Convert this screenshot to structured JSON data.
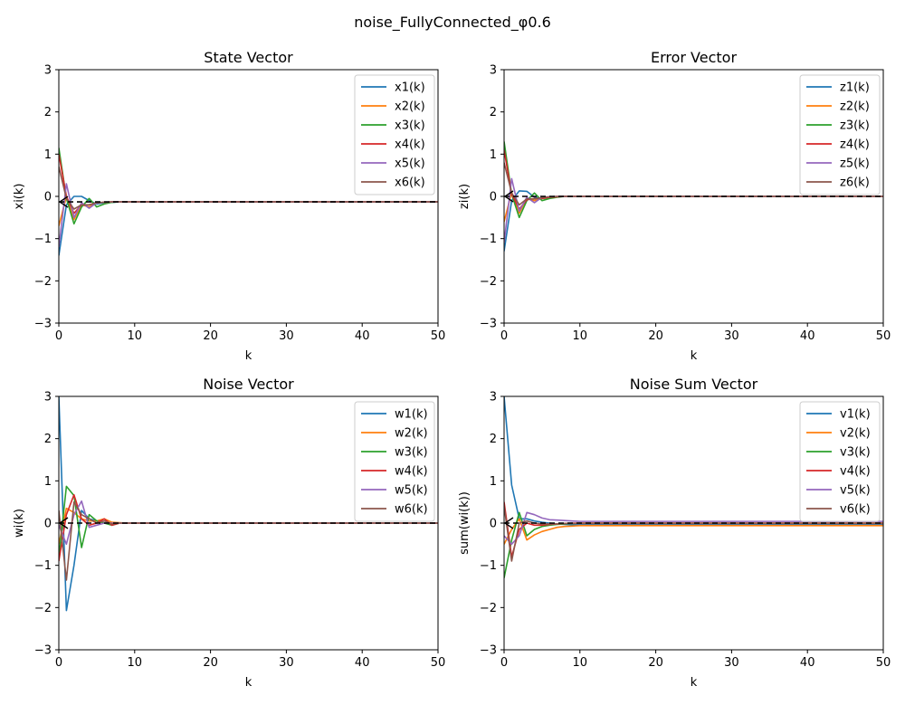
{
  "figure": {
    "suptitle": "noise_FullyConnected_φ0.6"
  },
  "colors": [
    "#1f77b4",
    "#ff7f0e",
    "#2ca02c",
    "#d62728",
    "#9467bd",
    "#8c564b"
  ],
  "chart_data": [
    {
      "type": "line",
      "title": "State Vector",
      "xlabel": "k",
      "ylabel": "xi(k)",
      "xlim": [
        0,
        50
      ],
      "ylim": [
        -3,
        3
      ],
      "xticks": [
        "0",
        "10",
        "20",
        "30",
        "40",
        "50"
      ],
      "yticks": [
        "−3",
        "−2",
        "−1",
        "0",
        "1",
        "2",
        "3"
      ],
      "legend": "top-right",
      "grid": false,
      "reference_value": -0.13,
      "x": [
        0,
        1,
        2,
        3,
        4,
        5,
        6,
        7,
        8,
        9,
        10,
        11,
        12,
        13,
        14,
        15,
        16,
        17,
        18,
        19,
        20,
        21,
        22,
        23,
        24,
        25,
        26,
        27,
        28,
        29,
        30,
        31,
        32,
        33,
        34,
        35,
        36,
        37,
        38,
        39,
        40,
        41,
        42,
        43,
        44,
        45,
        46,
        47,
        48,
        49,
        50
      ],
      "series": [
        {
          "name": "x1(k)",
          "head": [
            -1.4,
            -0.2,
            0.0,
            0.0,
            -0.1,
            -0.18,
            -0.15,
            -0.14,
            -0.13,
            -0.13
          ],
          "tail": -0.13
        },
        {
          "name": "x2(k)",
          "head": [
            -0.7,
            0.0,
            -0.55,
            -0.2,
            -0.25,
            -0.15,
            -0.14,
            -0.13,
            -0.13,
            -0.13
          ],
          "tail": -0.13
        },
        {
          "name": "x3(k)",
          "head": [
            1.15,
            -0.05,
            -0.65,
            -0.25,
            -0.05,
            -0.25,
            -0.18,
            -0.14,
            -0.13,
            -0.13
          ],
          "tail": -0.13
        },
        {
          "name": "x4(k)",
          "head": [
            1.0,
            0.0,
            -0.4,
            -0.2,
            -0.2,
            -0.15,
            -0.14,
            -0.13,
            -0.13,
            -0.13
          ],
          "tail": -0.13
        },
        {
          "name": "x5(k)",
          "head": [
            -1.2,
            0.3,
            -0.5,
            -0.15,
            -0.28,
            -0.15,
            -0.14,
            -0.13,
            -0.13,
            -0.13
          ],
          "tail": -0.13
        },
        {
          "name": "x6(k)",
          "head": [
            0.7,
            -0.05,
            -0.3,
            -0.2,
            -0.2,
            -0.15,
            -0.14,
            -0.13,
            -0.13,
            -0.13
          ],
          "tail": -0.13
        }
      ]
    },
    {
      "type": "line",
      "title": "Error Vector",
      "xlabel": "k",
      "ylabel": "zi(k)",
      "xlim": [
        0,
        50
      ],
      "ylim": [
        -3,
        3
      ],
      "xticks": [
        "0",
        "10",
        "20",
        "30",
        "40",
        "50"
      ],
      "yticks": [
        "−3",
        "−2",
        "−1",
        "0",
        "1",
        "2",
        "3"
      ],
      "legend": "top-right",
      "grid": false,
      "reference_value": 0.0,
      "x": [
        0,
        1,
        2,
        3,
        4,
        5,
        6,
        7,
        8,
        9,
        10,
        11,
        12,
        13,
        14,
        15,
        16,
        17,
        18,
        19,
        20,
        21,
        22,
        23,
        24,
        25,
        26,
        27,
        28,
        29,
        30,
        31,
        32,
        33,
        34,
        35,
        36,
        37,
        38,
        39,
        40,
        41,
        42,
        43,
        44,
        45,
        46,
        47,
        48,
        49,
        50
      ],
      "series": [
        {
          "name": "z1(k)",
          "head": [
            -1.3,
            -0.1,
            0.13,
            0.12,
            -0.02,
            -0.05,
            -0.03,
            -0.01,
            0.0,
            0.0
          ],
          "tail": 0.0
        },
        {
          "name": "z2(k)",
          "head": [
            -0.6,
            0.1,
            -0.4,
            -0.05,
            -0.1,
            -0.05,
            -0.02,
            -0.01,
            0.0,
            0.0
          ],
          "tail": 0.0
        },
        {
          "name": "z3(k)",
          "head": [
            1.3,
            0.05,
            -0.5,
            -0.1,
            0.08,
            -0.1,
            -0.05,
            -0.02,
            0.0,
            0.0
          ],
          "tail": 0.0
        },
        {
          "name": "z4(k)",
          "head": [
            1.1,
            0.05,
            -0.3,
            -0.08,
            -0.05,
            -0.05,
            -0.02,
            -0.01,
            0.0,
            0.0
          ],
          "tail": 0.0
        },
        {
          "name": "z5(k)",
          "head": [
            -1.1,
            0.42,
            -0.35,
            -0.02,
            -0.15,
            -0.02,
            -0.01,
            0.0,
            0.0,
            0.0
          ],
          "tail": 0.0
        },
        {
          "name": "z6(k)",
          "head": [
            0.8,
            0.08,
            -0.2,
            -0.06,
            -0.06,
            -0.03,
            -0.01,
            0.0,
            0.0,
            0.0
          ],
          "tail": 0.0
        }
      ]
    },
    {
      "type": "line",
      "title": "Noise Vector",
      "xlabel": "k",
      "ylabel": "wi(k)",
      "xlim": [
        0,
        50
      ],
      "ylim": [
        -3,
        3
      ],
      "xticks": [
        "0",
        "10",
        "20",
        "30",
        "40",
        "50"
      ],
      "yticks": [
        "−3",
        "−2",
        "−1",
        "0",
        "1",
        "2",
        "3"
      ],
      "legend": "top-right",
      "grid": false,
      "reference_value": 0.0,
      "x": [
        0,
        1,
        2,
        3,
        4,
        5,
        6,
        7,
        8,
        9,
        10,
        11,
        12,
        13,
        14,
        15,
        16,
        17,
        18,
        19,
        20,
        21,
        22,
        23,
        24,
        25,
        26,
        27,
        28,
        29,
        30,
        31,
        32,
        33,
        34,
        35,
        36,
        37,
        38,
        39,
        40,
        41,
        42,
        43,
        44,
        45,
        46,
        47,
        48,
        49,
        50
      ],
      "series": [
        {
          "name": "w1(k)",
          "head": [
            3.0,
            -2.07,
            -1.0,
            0.3,
            0.1,
            0.05,
            0.0,
            0.0,
            0.0,
            0.0
          ],
          "tail": 0.0
        },
        {
          "name": "w2(k)",
          "head": [
            -0.5,
            0.35,
            0.25,
            0.1,
            0.05,
            0.05,
            0.1,
            0.02,
            0.01,
            0.0
          ],
          "tail": 0.0
        },
        {
          "name": "w3(k)",
          "head": [
            -0.8,
            0.87,
            0.65,
            -0.58,
            0.2,
            0.05,
            0.0,
            -0.05,
            0.0,
            0.0
          ],
          "tail": 0.0
        },
        {
          "name": "w4(k)",
          "head": [
            -0.9,
            0.2,
            0.67,
            0.1,
            -0.05,
            0.0,
            0.1,
            -0.05,
            0.0,
            0.0
          ],
          "tail": 0.0
        },
        {
          "name": "w5(k)",
          "head": [
            -0.05,
            -0.5,
            0.2,
            0.52,
            -0.1,
            -0.05,
            0.0,
            0.0,
            0.0,
            0.0
          ],
          "tail": 0.0
        },
        {
          "name": "w6(k)",
          "head": [
            0.3,
            -1.35,
            0.5,
            0.2,
            0.1,
            0.0,
            0.05,
            -0.02,
            0.0,
            0.0
          ],
          "tail": 0.0
        }
      ]
    },
    {
      "type": "line",
      "title": "Noise Sum Vector",
      "xlabel": "k",
      "ylabel": "sum(wi(k))",
      "xlim": [
        0,
        50
      ],
      "ylim": [
        -3,
        3
      ],
      "xticks": [
        "0",
        "10",
        "20",
        "30",
        "40",
        "50"
      ],
      "yticks": [
        "−3",
        "−2",
        "−1",
        "0",
        "1",
        "2",
        "3"
      ],
      "legend": "top-right",
      "grid": false,
      "reference_value": 0.0,
      "x": [
        0,
        1,
        2,
        3,
        4,
        5,
        6,
        7,
        8,
        9,
        10,
        11,
        12,
        13,
        14,
        15,
        16,
        17,
        18,
        19,
        20,
        21,
        22,
        23,
        24,
        25,
        26,
        27,
        28,
        29,
        30,
        31,
        32,
        33,
        34,
        35,
        36,
        37,
        38,
        39,
        40,
        41,
        42,
        43,
        44,
        45,
        46,
        47,
        48,
        49,
        50
      ],
      "series": [
        {
          "name": "v1(k)",
          "head": [
            3.0,
            0.9,
            0.1,
            0.1,
            0.05,
            0.02,
            0.0,
            -0.02,
            -0.03,
            -0.04
          ],
          "tail": -0.04
        },
        {
          "name": "v2(k)",
          "head": [
            -0.5,
            -0.15,
            0.1,
            -0.4,
            -0.28,
            -0.2,
            -0.15,
            -0.1,
            -0.08,
            -0.07
          ],
          "tail": -0.06
        },
        {
          "name": "v3(k)",
          "head": [
            -1.3,
            -0.4,
            0.25,
            -0.3,
            -0.15,
            -0.08,
            -0.05,
            -0.03,
            -0.02,
            -0.01
          ],
          "tail": 0.0
        },
        {
          "name": "v4(k)",
          "head": [
            0.5,
            -0.8,
            -0.15,
            0.0,
            -0.05,
            -0.05,
            -0.03,
            -0.02,
            -0.01,
            0.0
          ],
          "tail": 0.0
        },
        {
          "name": "v5(k)",
          "head": [
            -0.3,
            -0.5,
            -0.3,
            0.25,
            0.2,
            0.12,
            0.08,
            0.07,
            0.06,
            0.05
          ],
          "tail": 0.04
        },
        {
          "name": "v6(k)",
          "head": [
            0.4,
            -0.9,
            0.0,
            0.05,
            0.0,
            -0.02,
            -0.02,
            -0.02,
            -0.01,
            -0.01
          ],
          "tail": -0.01
        }
      ]
    }
  ]
}
